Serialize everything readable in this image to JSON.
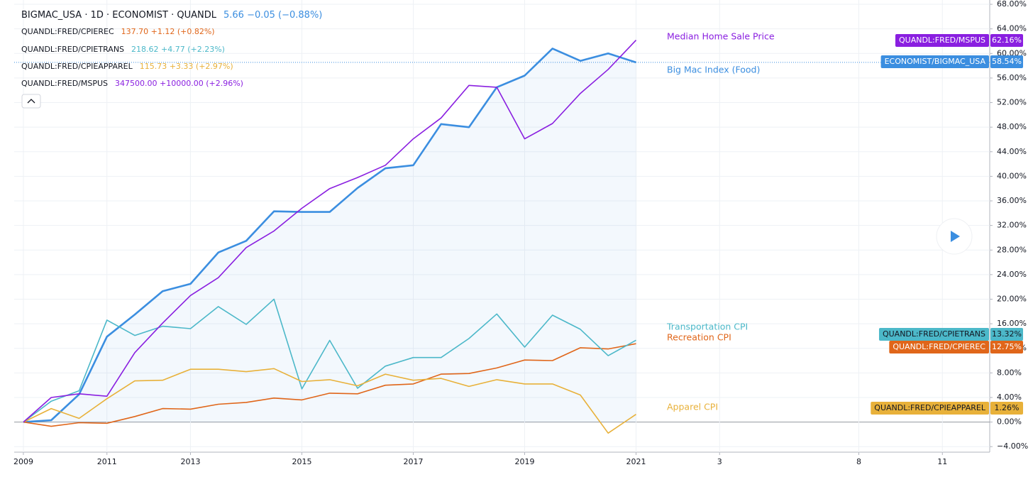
{
  "chart_data": {
    "type": "line",
    "title": "BIGMAC_USA · 1D · ECONOMIST · QUANDL",
    "categories": [
      "2009",
      null,
      null,
      "2011",
      null,
      null,
      "2013",
      null,
      null,
      null,
      "2015",
      null,
      null,
      null,
      "2017",
      null,
      null,
      null,
      "2019",
      null,
      null,
      null,
      "2021"
    ],
    "xticks": [
      {
        "value": 25,
        "label": "3"
      },
      {
        "value": 30,
        "label": "8"
      },
      {
        "value": 33,
        "label": "11"
      }
    ],
    "xlim": [
      -0.33,
      34.7
    ],
    "ylim": [
      -4.9,
      68.7
    ],
    "yticks": [
      {
        "value": 68,
        "label": "68.00%"
      },
      {
        "value": 64,
        "label": "64.00%"
      },
      {
        "value": 60,
        "label": "60.00%"
      },
      {
        "value": 56,
        "label": "56.00%"
      },
      {
        "value": 52,
        "label": "52.00%"
      },
      {
        "value": 48,
        "label": "48.00%"
      },
      {
        "value": 44,
        "label": "44.00%"
      },
      {
        "value": 40,
        "label": "40.00%"
      },
      {
        "value": 36,
        "label": "36.00%"
      },
      {
        "value": 32,
        "label": "32.00%"
      },
      {
        "value": 28,
        "label": "28.00%"
      },
      {
        "value": 24,
        "label": "24.00%"
      },
      {
        "value": 20,
        "label": "20.00%"
      },
      {
        "value": 16,
        "label": "16.00%"
      },
      {
        "value": 12,
        "label": "12.00%"
      },
      {
        "value": 8,
        "label": "8.00%"
      },
      {
        "value": 4,
        "label": "4.00%"
      },
      {
        "value": 0,
        "label": "0.00%"
      },
      {
        "value": -4,
        "label": "−4.00%"
      }
    ],
    "grid": true,
    "series": [
      {
        "name": "ECONOMIST/BIGMAC_USA",
        "header_quote": "5.66  −0.05 (−0.88%)",
        "label": "Big Mac Index (Food)",
        "last_label": "58.54%",
        "color": "#3b8ee0",
        "values": [
          0,
          0.3,
          4.5,
          13.9,
          17.5,
          21.3,
          22.5,
          27.6,
          29.5,
          34.3,
          34.2,
          34.2,
          38.1,
          41.3,
          41.8,
          48.5,
          48.0,
          54.5,
          56.4,
          60.8,
          58.8,
          60.0,
          58.54
        ]
      },
      {
        "name": "QUANDL:FRED/CPIEREC",
        "header_symbol": "QUANDL:FRED/CPIEREC",
        "header_quote": "137.70  +1.12 (+0.82%)",
        "label": "Recreation CPI",
        "last_label": "12.75%",
        "color": "#e0661a",
        "values": [
          0,
          -0.7,
          -0.1,
          -0.2,
          0.9,
          2.2,
          2.1,
          2.9,
          3.2,
          3.9,
          3.6,
          4.7,
          4.6,
          6.0,
          6.2,
          7.8,
          7.9,
          8.8,
          10.1,
          10.0,
          12.1,
          11.9,
          12.75
        ]
      },
      {
        "name": "QUANDL:FRED/CPIETRANS",
        "header_symbol": "QUANDL:FRED/CPIETRANS",
        "header_quote": "218.62  +4.77 (+2.23%)",
        "label": "Transportation CPI",
        "last_label": "13.32%",
        "color": "#4cb8c9",
        "values": [
          0,
          3.4,
          5.1,
          16.6,
          14.1,
          15.6,
          15.2,
          18.8,
          15.9,
          20.0,
          5.4,
          13.3,
          5.5,
          9.1,
          10.5,
          10.5,
          13.6,
          17.6,
          12.2,
          17.4,
          15.1,
          10.8,
          13.32
        ]
      },
      {
        "name": "QUANDL:FRED/CPIEAPPAREL",
        "header_symbol": "QUANDL:FRED/CPIEAPPAREL",
        "header_quote": "115.73  +3.33 (+2.97%)",
        "label": "Apparel CPI",
        "last_label": "1.26%",
        "color": "#e8b13a",
        "values": [
          0,
          2.2,
          0.6,
          3.8,
          6.7,
          6.8,
          8.6,
          8.6,
          8.2,
          8.7,
          6.6,
          6.9,
          5.9,
          7.8,
          6.8,
          7.1,
          5.8,
          6.9,
          6.2,
          6.2,
          4.4,
          -1.8,
          1.26
        ]
      },
      {
        "name": "QUANDL:FRED/MSPUS",
        "header_symbol": "QUANDL:FRED/MSPUS",
        "header_quote": "347500.00  +10000.00 (+2.96%)",
        "label": "Median Home Sale Price",
        "last_label": "62.16%",
        "color": "#8a1fe0",
        "values": [
          0,
          4.0,
          4.6,
          4.2,
          11.3,
          16.1,
          20.6,
          23.5,
          28.4,
          31.1,
          34.8,
          38.0,
          39.8,
          41.8,
          46.1,
          49.5,
          54.8,
          54.5,
          46.1,
          48.6,
          53.5,
          57.4,
          62.16
        ]
      }
    ]
  }
}
